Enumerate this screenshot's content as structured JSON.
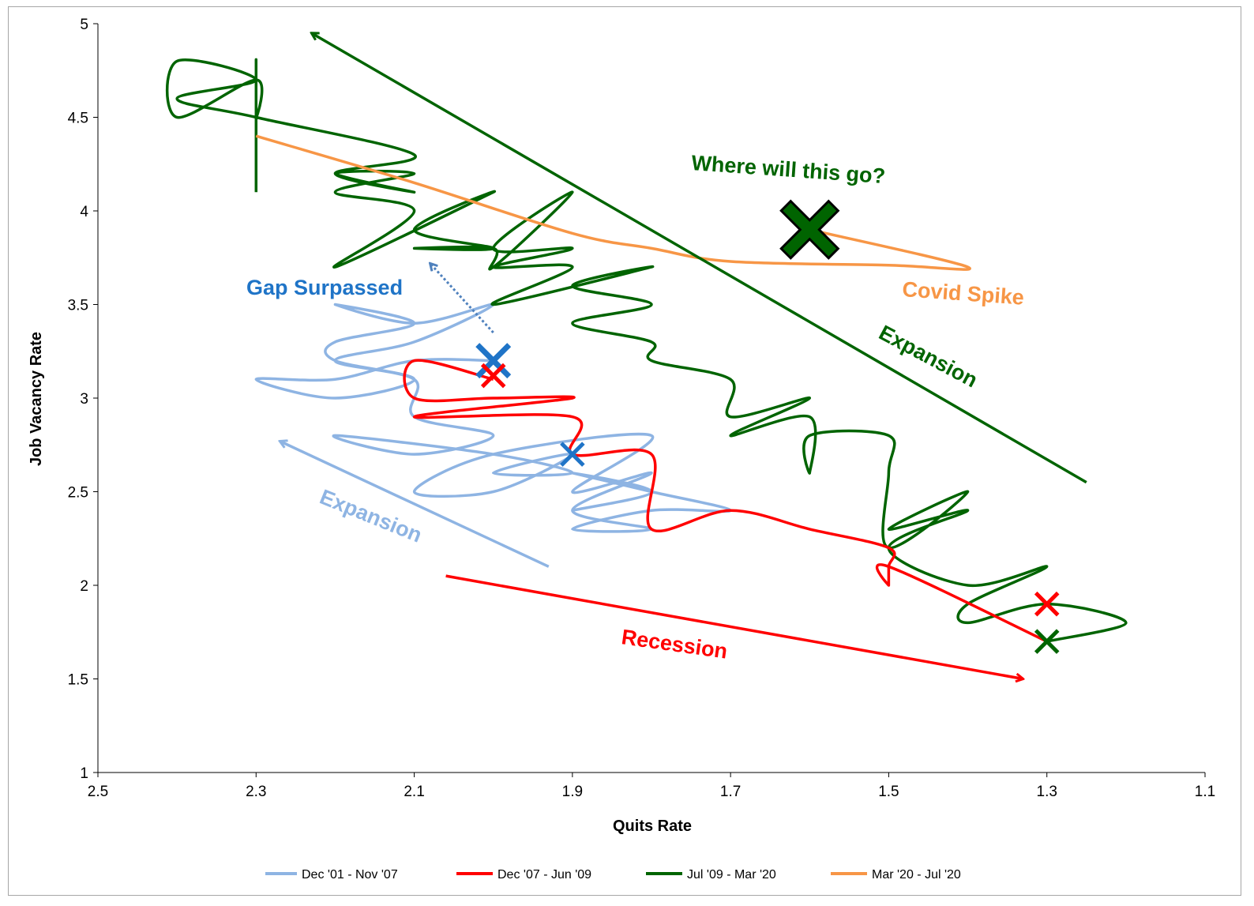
{
  "chart_data": {
    "type": "line",
    "xlabel": "Quits Rate",
    "ylabel": "Job Vacancy  Rate",
    "xlim": [
      2.5,
      1.1
    ],
    "x_reversed": true,
    "ylim": [
      1,
      5
    ],
    "x_ticks": [
      "2.5",
      "2.3",
      "2.1",
      "1.9",
      "1.7",
      "1.5",
      "1.3",
      "1.1"
    ],
    "y_ticks": [
      "1",
      "1.5",
      "2",
      "2.5",
      "3",
      "3.5",
      "4",
      "4.5",
      "5"
    ],
    "grid": false,
    "legend_position": "bottom",
    "series": [
      {
        "name": "Dec '01 - Nov '07",
        "color": "#8eb4e3",
        "points": [
          [
            2.0,
            3.2
          ],
          [
            2.1,
            3.2
          ],
          [
            2.2,
            3.1
          ],
          [
            2.3,
            3.1
          ],
          [
            2.2,
            3.0
          ],
          [
            2.1,
            3.1
          ],
          [
            2.2,
            3.2
          ],
          [
            2.2,
            3.3
          ],
          [
            2.1,
            3.4
          ],
          [
            2.2,
            3.5
          ],
          [
            2.1,
            3.4
          ],
          [
            2.0,
            3.5
          ],
          [
            2.1,
            3.3
          ],
          [
            2.2,
            3.2
          ],
          [
            2.1,
            3.1
          ],
          [
            2.1,
            2.9
          ],
          [
            2.0,
            2.8
          ],
          [
            2.1,
            2.7
          ],
          [
            2.2,
            2.8
          ],
          [
            2.0,
            2.7
          ],
          [
            1.9,
            2.6
          ],
          [
            2.0,
            2.6
          ],
          [
            1.9,
            2.7
          ],
          [
            2.0,
            2.5
          ],
          [
            2.1,
            2.5
          ],
          [
            2.0,
            2.7
          ],
          [
            1.8,
            2.8
          ],
          [
            1.9,
            2.5
          ],
          [
            1.8,
            2.6
          ],
          [
            1.9,
            2.4
          ],
          [
            1.8,
            2.3
          ],
          [
            1.9,
            2.3
          ],
          [
            1.8,
            2.4
          ],
          [
            1.7,
            2.4
          ],
          [
            1.8,
            2.5
          ],
          [
            1.9,
            2.6
          ],
          [
            1.8,
            2.5
          ],
          [
            1.9,
            2.4
          ]
        ]
      },
      {
        "name": "Dec '07 - Jun '09",
        "color": "#ff0000",
        "points": [
          [
            2.0,
            3.1
          ],
          [
            2.1,
            3.2
          ],
          [
            2.1,
            3.0
          ],
          [
            2.0,
            3.0
          ],
          [
            1.9,
            3.0
          ],
          [
            2.1,
            2.9
          ],
          [
            1.9,
            2.9
          ],
          [
            1.9,
            2.7
          ],
          [
            1.8,
            2.7
          ],
          [
            1.8,
            2.3
          ],
          [
            1.7,
            2.4
          ],
          [
            1.6,
            2.3
          ],
          [
            1.5,
            2.2
          ],
          [
            1.5,
            2.1
          ],
          [
            1.5,
            2.0
          ],
          [
            1.5,
            2.1
          ],
          [
            1.3,
            1.7
          ]
        ]
      },
      {
        "name": "Jul '09 - Mar '20",
        "color": "#006400",
        "points": [
          [
            1.3,
            1.7
          ],
          [
            1.2,
            1.8
          ],
          [
            1.3,
            1.9
          ],
          [
            1.4,
            1.8
          ],
          [
            1.4,
            1.9
          ],
          [
            1.3,
            2.1
          ],
          [
            1.4,
            2.0
          ],
          [
            1.5,
            2.2
          ],
          [
            1.4,
            2.4
          ],
          [
            1.5,
            2.3
          ],
          [
            1.4,
            2.5
          ],
          [
            1.5,
            2.2
          ],
          [
            1.5,
            2.6
          ],
          [
            1.5,
            2.8
          ],
          [
            1.6,
            2.8
          ],
          [
            1.6,
            2.6
          ],
          [
            1.6,
            2.9
          ],
          [
            1.7,
            2.8
          ],
          [
            1.6,
            3.0
          ],
          [
            1.7,
            2.9
          ],
          [
            1.7,
            3.1
          ],
          [
            1.8,
            3.2
          ],
          [
            1.8,
            3.3
          ],
          [
            1.9,
            3.4
          ],
          [
            1.8,
            3.5
          ],
          [
            1.9,
            3.6
          ],
          [
            1.8,
            3.7
          ],
          [
            2.0,
            3.5
          ],
          [
            1.9,
            3.7
          ],
          [
            2.0,
            3.7
          ],
          [
            1.9,
            3.8
          ],
          [
            2.0,
            3.8
          ],
          [
            1.9,
            4.1
          ],
          [
            2.0,
            3.7
          ],
          [
            2.0,
            3.8
          ],
          [
            2.1,
            3.8
          ],
          [
            2.0,
            3.8
          ],
          [
            2.1,
            3.9
          ],
          [
            2.0,
            4.1
          ],
          [
            2.2,
            3.7
          ],
          [
            2.1,
            4.0
          ],
          [
            2.2,
            4.1
          ],
          [
            2.1,
            4.2
          ],
          [
            2.2,
            4.2
          ],
          [
            2.1,
            4.1
          ],
          [
            2.2,
            4.2
          ],
          [
            2.1,
            4.3
          ],
          [
            2.3,
            4.5
          ],
          [
            2.4,
            4.6
          ],
          [
            2.3,
            4.7
          ],
          [
            2.4,
            4.8
          ],
          [
            2.4,
            4.5
          ],
          [
            2.3,
            4.7
          ],
          [
            2.3,
            4.5
          ],
          [
            2.3,
            4.8
          ],
          [
            2.3,
            4.1
          ]
        ]
      },
      {
        "name": "Mar '20 - Jul '20",
        "color": "#f79646",
        "points": [
          [
            2.3,
            4.4
          ],
          [
            2.1,
            4.15
          ],
          [
            1.9,
            3.88
          ],
          [
            1.8,
            3.8
          ],
          [
            1.7,
            3.73
          ],
          [
            1.5,
            3.71
          ],
          [
            1.4,
            3.7
          ],
          [
            1.6,
            3.9
          ]
        ]
      }
    ],
    "annotations": [
      {
        "text": "Where will this go?",
        "color": "#006400"
      },
      {
        "text": "Gap Surpassed",
        "color": "#1f74c7"
      },
      {
        "text": "Covid Spike",
        "color": "#f79646"
      },
      {
        "text": "Expansion",
        "color": "#006400"
      },
      {
        "text": "Expansion",
        "color": "#8eb4e3"
      },
      {
        "text": "Recession",
        "color": "#ff0000"
      }
    ],
    "arrows": [
      {
        "color": "#006400",
        "from": [
          1.25,
          2.55
        ],
        "to": [
          2.23,
          4.95
        ],
        "style": "solid"
      },
      {
        "color": "#8eb4e3",
        "from": [
          1.93,
          2.1
        ],
        "to": [
          2.27,
          2.77
        ],
        "style": "solid"
      },
      {
        "color": "#ff0000",
        "from": [
          2.06,
          2.05
        ],
        "to": [
          1.33,
          1.5
        ],
        "style": "solid"
      },
      {
        "color": "#4f81bd",
        "from": [
          2.0,
          3.35
        ],
        "to": [
          2.08,
          3.72
        ],
        "style": "dotted"
      }
    ],
    "markers": [
      {
        "x": 1.6,
        "y": 3.9,
        "color": "#006400",
        "size": "large",
        "outlined": true
      },
      {
        "x": 2.0,
        "y": 3.2,
        "color": "#1f74c7",
        "size": "medium"
      },
      {
        "x": 1.9,
        "y": 2.7,
        "color": "#1f74c7",
        "size": "small"
      },
      {
        "x": 2.0,
        "y": 3.12,
        "color": "#ff0000",
        "size": "small"
      },
      {
        "x": 1.3,
        "y": 1.9,
        "color": "#ff0000",
        "size": "small"
      },
      {
        "x": 1.3,
        "y": 1.7,
        "color": "#006400",
        "size": "small"
      }
    ]
  }
}
